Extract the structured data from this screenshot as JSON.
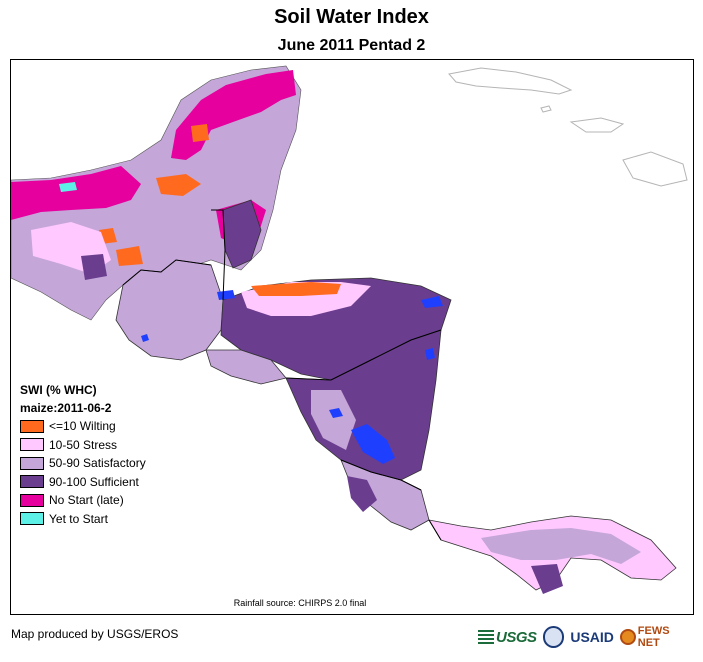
{
  "header": {
    "title": "Soil Water Index",
    "subtitle": "June 2011 Pentad 2"
  },
  "legend": {
    "heading": "SWI (% WHC)",
    "crop": "maize:2011-06-2",
    "items": [
      {
        "label": "<=10 Wilting",
        "color": "#ff6a1f"
      },
      {
        "label": "10-50 Stress",
        "color": "#ffc8ff"
      },
      {
        "label": "50-90 Satisfactory",
        "color": "#c4a6d8"
      },
      {
        "label": "90-100 Sufficient",
        "color": "#6a3d8f"
      },
      {
        "label": "No Start (late)",
        "color": "#e6009e"
      },
      {
        "label": "Yet to Start",
        "color": "#5cf0e6"
      }
    ]
  },
  "map": {
    "source_note": "Rainfall source: CHIRPS 2.0 final",
    "water_color": "#1f3fff"
  },
  "footer": {
    "credit": "Map produced by USGS/EROS",
    "logos": {
      "usgs": "USGS",
      "usaid": "USAID",
      "usaid_accent": "",
      "fews": "FEWS NET"
    }
  }
}
